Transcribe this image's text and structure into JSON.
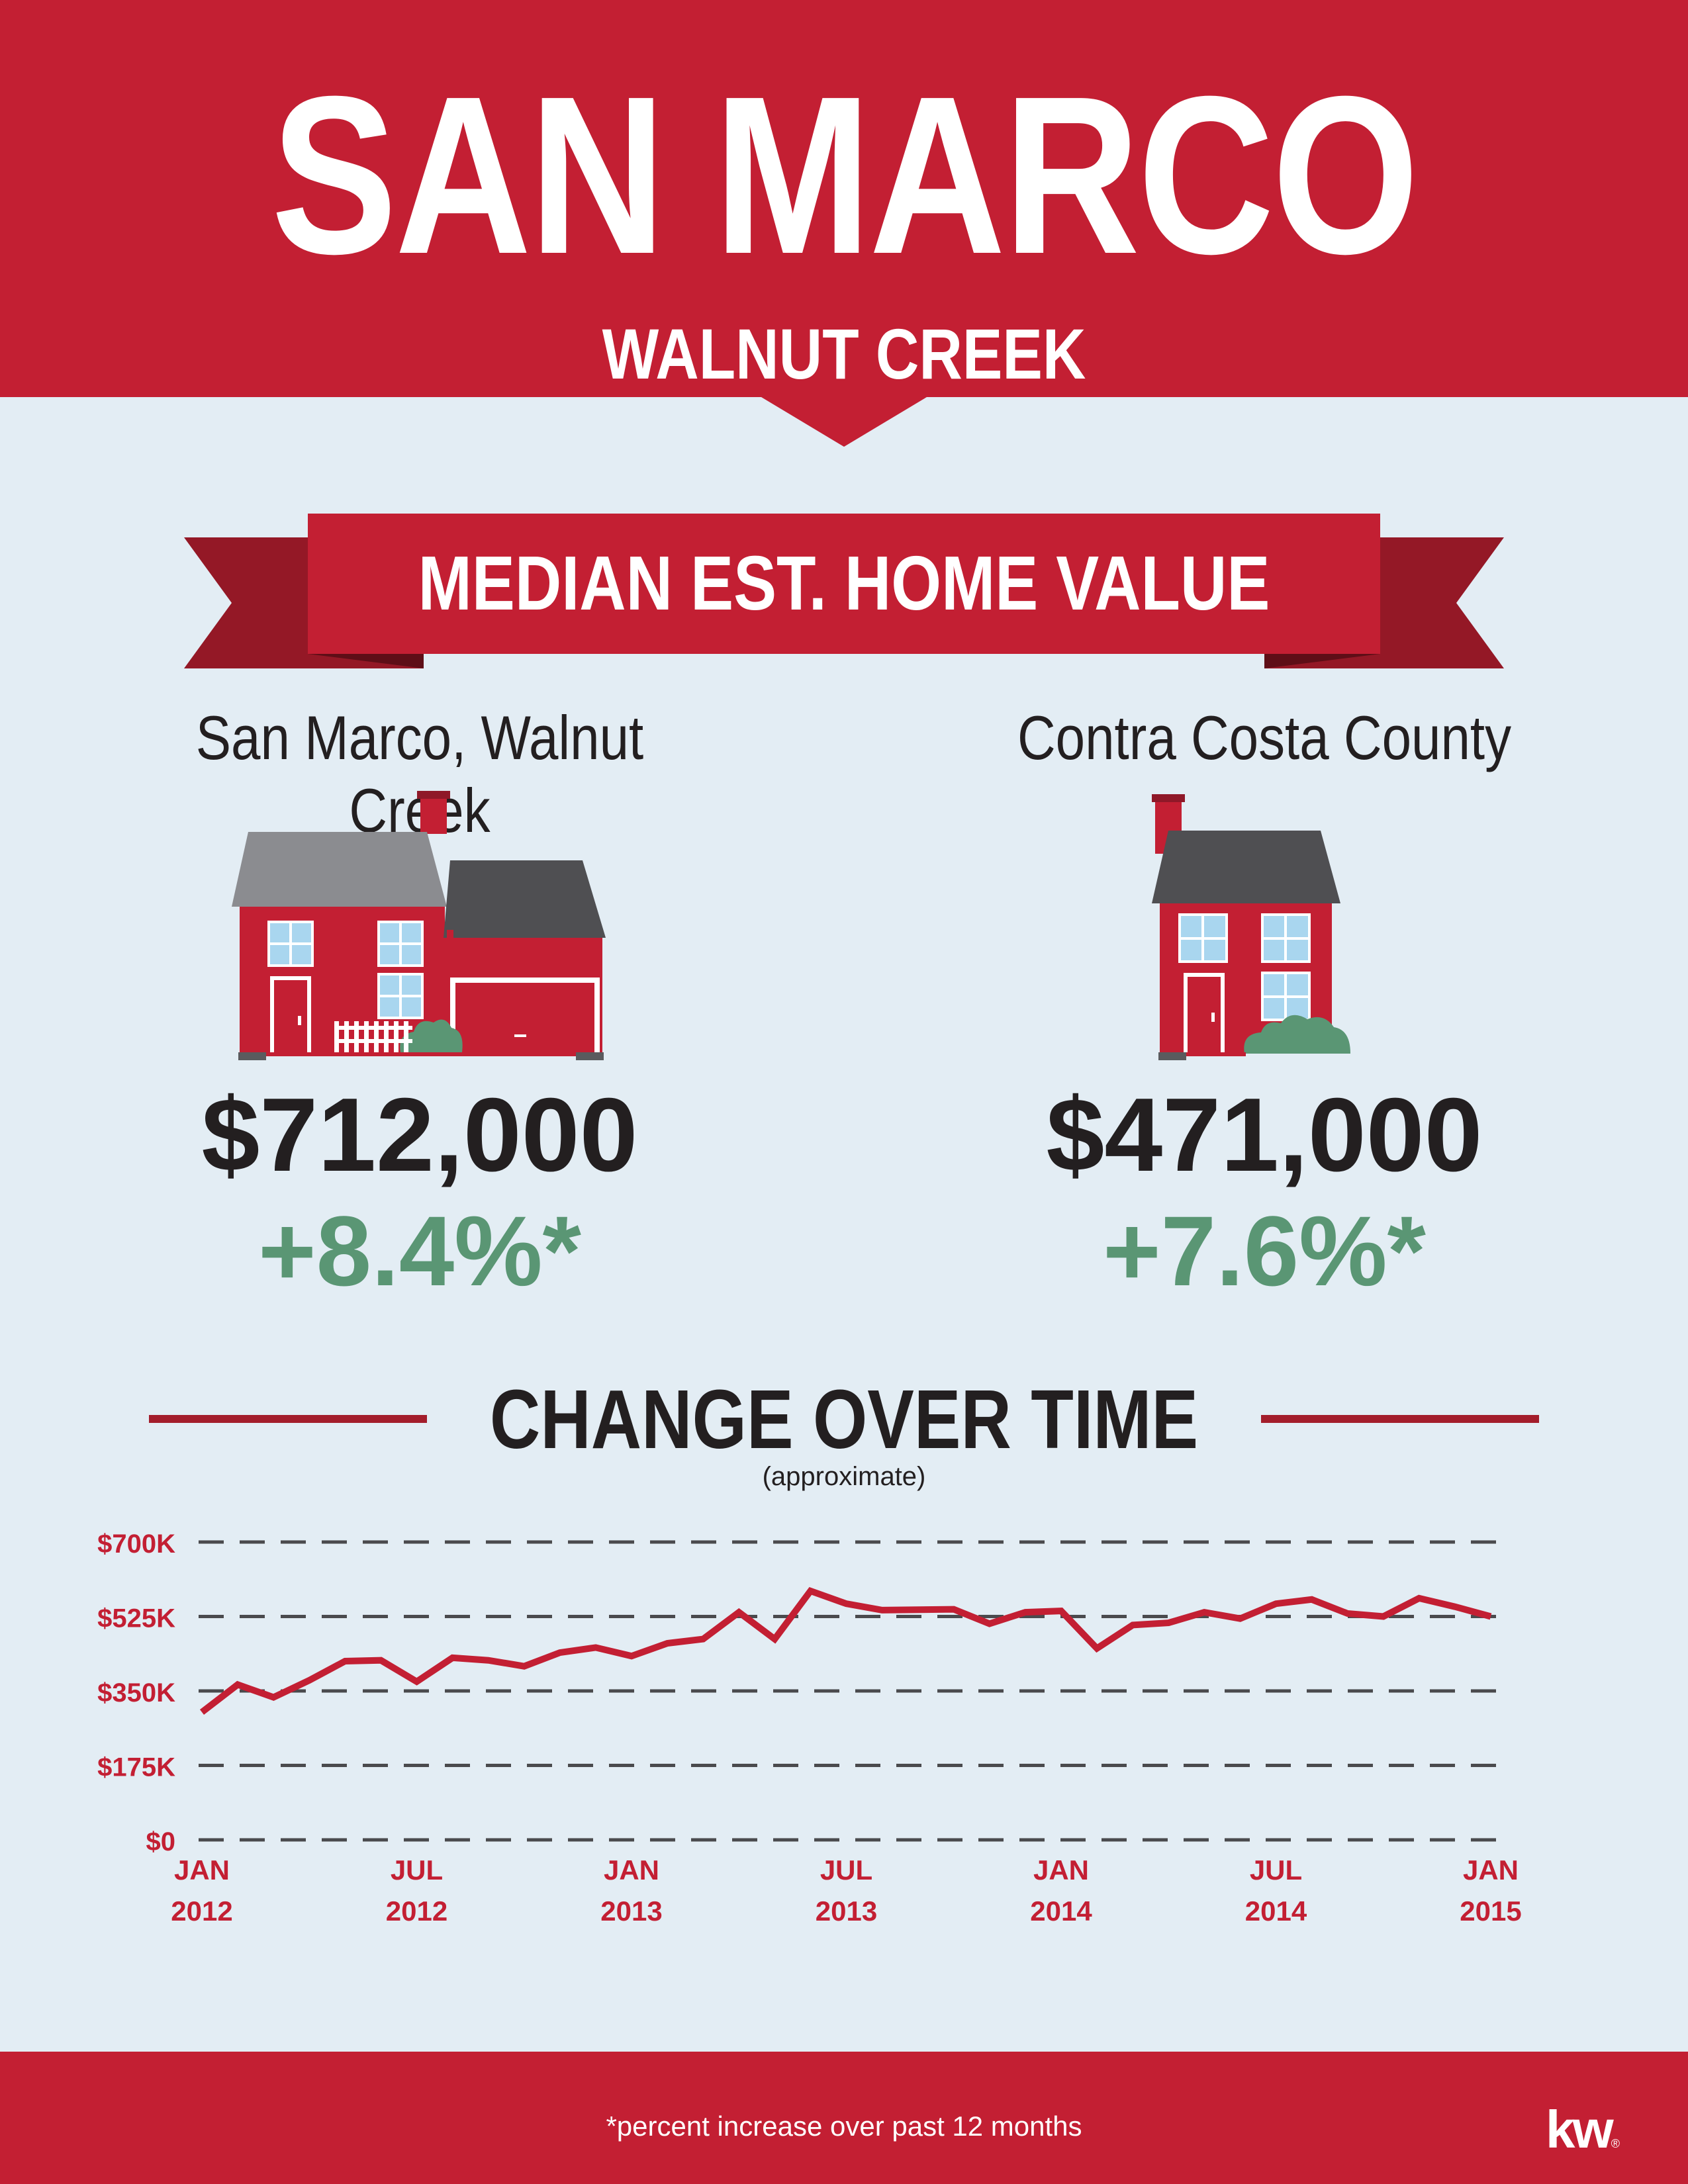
{
  "header": {
    "title": "SAN MARCO",
    "subtitle": "WALNUT CREEK"
  },
  "banner": {
    "label": "MEDIAN EST. HOME VALUE"
  },
  "colors": {
    "brand_red": "#c31f33",
    "dark_red": "#a31d2b",
    "growth_green": "#5a9674",
    "background": "#e3edf4"
  },
  "comparisons": [
    {
      "location": "San Marco, Walnut Creek",
      "value": "$712,000",
      "change": "+8.4%*",
      "icon": "house-with-garage-icon"
    },
    {
      "location": "Contra Costa County",
      "value": "$471,000",
      "change": "+7.6%*",
      "icon": "house-icon"
    }
  ],
  "chart_heading": {
    "title": "CHANGE OVER TIME",
    "subtitle": "(approximate)"
  },
  "chart_data": {
    "type": "line",
    "y_ticks": [
      "$700K",
      "$525K",
      "$350K",
      "$175K",
      "$0"
    ],
    "y_tick_values": [
      700000,
      525000,
      350000,
      175000,
      0
    ],
    "ylim": [
      0,
      700000
    ],
    "x_ticks": [
      {
        "x": 0,
        "lines": [
          "JAN",
          "2012"
        ]
      },
      {
        "x": 6,
        "lines": [
          "JUL",
          "2012"
        ]
      },
      {
        "x": 12,
        "lines": [
          "JAN",
          "2013"
        ]
      },
      {
        "x": 18,
        "lines": [
          "JUL",
          "2013"
        ]
      },
      {
        "x": 24,
        "lines": [
          "JAN",
          "2014"
        ]
      },
      {
        "x": 30,
        "lines": [
          "JUL",
          "2014"
        ]
      },
      {
        "x": 36,
        "lines": [
          "JAN",
          "2015"
        ]
      }
    ],
    "grid": "dashed horizontal",
    "series": [
      {
        "color": "#c31f33",
        "x": [
          0,
          1,
          2,
          3,
          4,
          5,
          6,
          7,
          8,
          9,
          10,
          11,
          12,
          13,
          14,
          15,
          16,
          17,
          18,
          19,
          20,
          21,
          22,
          23,
          24,
          25,
          26,
          27,
          28,
          29,
          30,
          31,
          32,
          33,
          34,
          35,
          36
        ],
        "values": [
          300000,
          365000,
          335000,
          375000,
          420000,
          422000,
          372000,
          428000,
          422000,
          408000,
          440000,
          452000,
          432000,
          462000,
          472000,
          535000,
          472000,
          585000,
          555000,
          540000,
          541000,
          542000,
          508000,
          535000,
          538000,
          450000,
          505000,
          510000,
          535000,
          520000,
          555000,
          565000,
          532000,
          525000,
          568000,
          548000,
          525000
        ]
      }
    ]
  },
  "footer": {
    "note": "*percent increase over past 12 months",
    "logo": "kw",
    "logo_mark": "®"
  }
}
